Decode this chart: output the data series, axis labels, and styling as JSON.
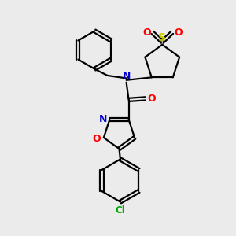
{
  "background_color": "#ebebeb",
  "line_color": "#000000",
  "nitrogen_color": "#0000cc",
  "oxygen_color": "#ff0000",
  "sulfur_color": "#cccc00",
  "chlorine_color": "#00aa00",
  "line_width": 1.6,
  "figsize": [
    3.0,
    3.0
  ],
  "dpi": 100,
  "xlim": [
    0,
    10
  ],
  "ylim": [
    0,
    10
  ]
}
